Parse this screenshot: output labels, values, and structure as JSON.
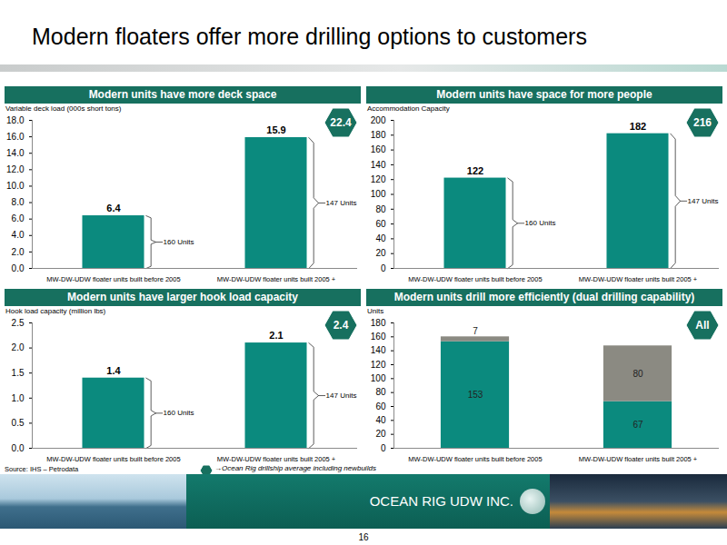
{
  "title": "Modern floaters offer more drilling options to customers",
  "source": "Source: IHS – Petrodata",
  "badge_note": "→Ocean Rig drillship average including newbuilds",
  "footer": "OCEAN RIG UDW INC.",
  "page": 16,
  "chart_data": [
    {
      "type": "bar",
      "title": "Modern units have more deck space",
      "y_label": "Variable deck load (000s short tons)",
      "categories": [
        "MW-DW-UDW floater units built before 2005",
        "MW-DW-UDW floater units built 2005 +"
      ],
      "values": [
        6.4,
        15.9
      ],
      "color": "#0b8a7e",
      "data_labels": true,
      "ylim": [
        0,
        18
      ],
      "yticks": [
        {
          "value": 0,
          "label": "0.0"
        },
        {
          "value": 2,
          "label": "2.0"
        },
        {
          "value": 4,
          "label": "4.0"
        },
        {
          "value": 6,
          "label": "6.0"
        },
        {
          "value": 8,
          "label": "8.0"
        },
        {
          "value": 10,
          "label": "10.0"
        },
        {
          "value": 12,
          "label": "12.0"
        },
        {
          "value": 14,
          "label": "14.0"
        },
        {
          "value": 16,
          "label": "16.0"
        },
        {
          "value": 18,
          "label": "18.0"
        }
      ],
      "annotations": [
        "160 Units",
        "147 Units"
      ],
      "ocean_rig_average": 22.4
    },
    {
      "type": "bar",
      "title": "Modern units have space for more people",
      "y_label": "Accommodation Capacity",
      "categories": [
        "MW-DW-UDW floater units built before 2005",
        "MW-DW-UDW floater units built 2005 +"
      ],
      "values": [
        122,
        182
      ],
      "color": "#0b8a7e",
      "data_labels": true,
      "ylim": [
        0,
        200
      ],
      "yticks": [
        0,
        20,
        40,
        60,
        80,
        100,
        120,
        140,
        160,
        180,
        200
      ],
      "annotations": [
        "160 Units",
        "147 Units"
      ],
      "ocean_rig_average": 216
    },
    {
      "type": "bar",
      "title": "Modern units have larger hook load capacity",
      "y_label": "Hook load capacity (million lbs)",
      "categories": [
        "MW-DW-UDW floater units built before 2005",
        "MW-DW-UDW floater units built 2005 +"
      ],
      "values": [
        1.4,
        2.1
      ],
      "color": "#0b8a7e",
      "data_labels": true,
      "ylim": [
        0,
        2.5
      ],
      "yticks": [
        {
          "value": 0,
          "label": "0.0"
        },
        0.5,
        {
          "value": 1,
          "label": "1.0"
        },
        1.5,
        {
          "value": 2,
          "label": "2.0"
        },
        2.5
      ],
      "annotations": [
        "160 Units",
        "147 Units"
      ],
      "ocean_rig_average": 2.4
    },
    {
      "type": "bar",
      "title": "Modern units drill more efficiently (dual drilling capability)",
      "y_label": "Units",
      "categories": [
        "MW-DW-UDW floater units built before 2005",
        "MW-DW-UDW floater units built 2005 +"
      ],
      "stacked": true,
      "data_labels": true,
      "series": [
        {
          "color": "#0b8a7e",
          "values": [
            153,
            67
          ]
        },
        {
          "color": "#8b8a82",
          "values": [
            7,
            80
          ]
        }
      ],
      "ylim": [
        0,
        180
      ],
      "yticks": [
        0,
        20,
        40,
        60,
        80,
        100,
        120,
        140,
        160,
        180
      ],
      "ocean_rig_average": "All"
    }
  ]
}
